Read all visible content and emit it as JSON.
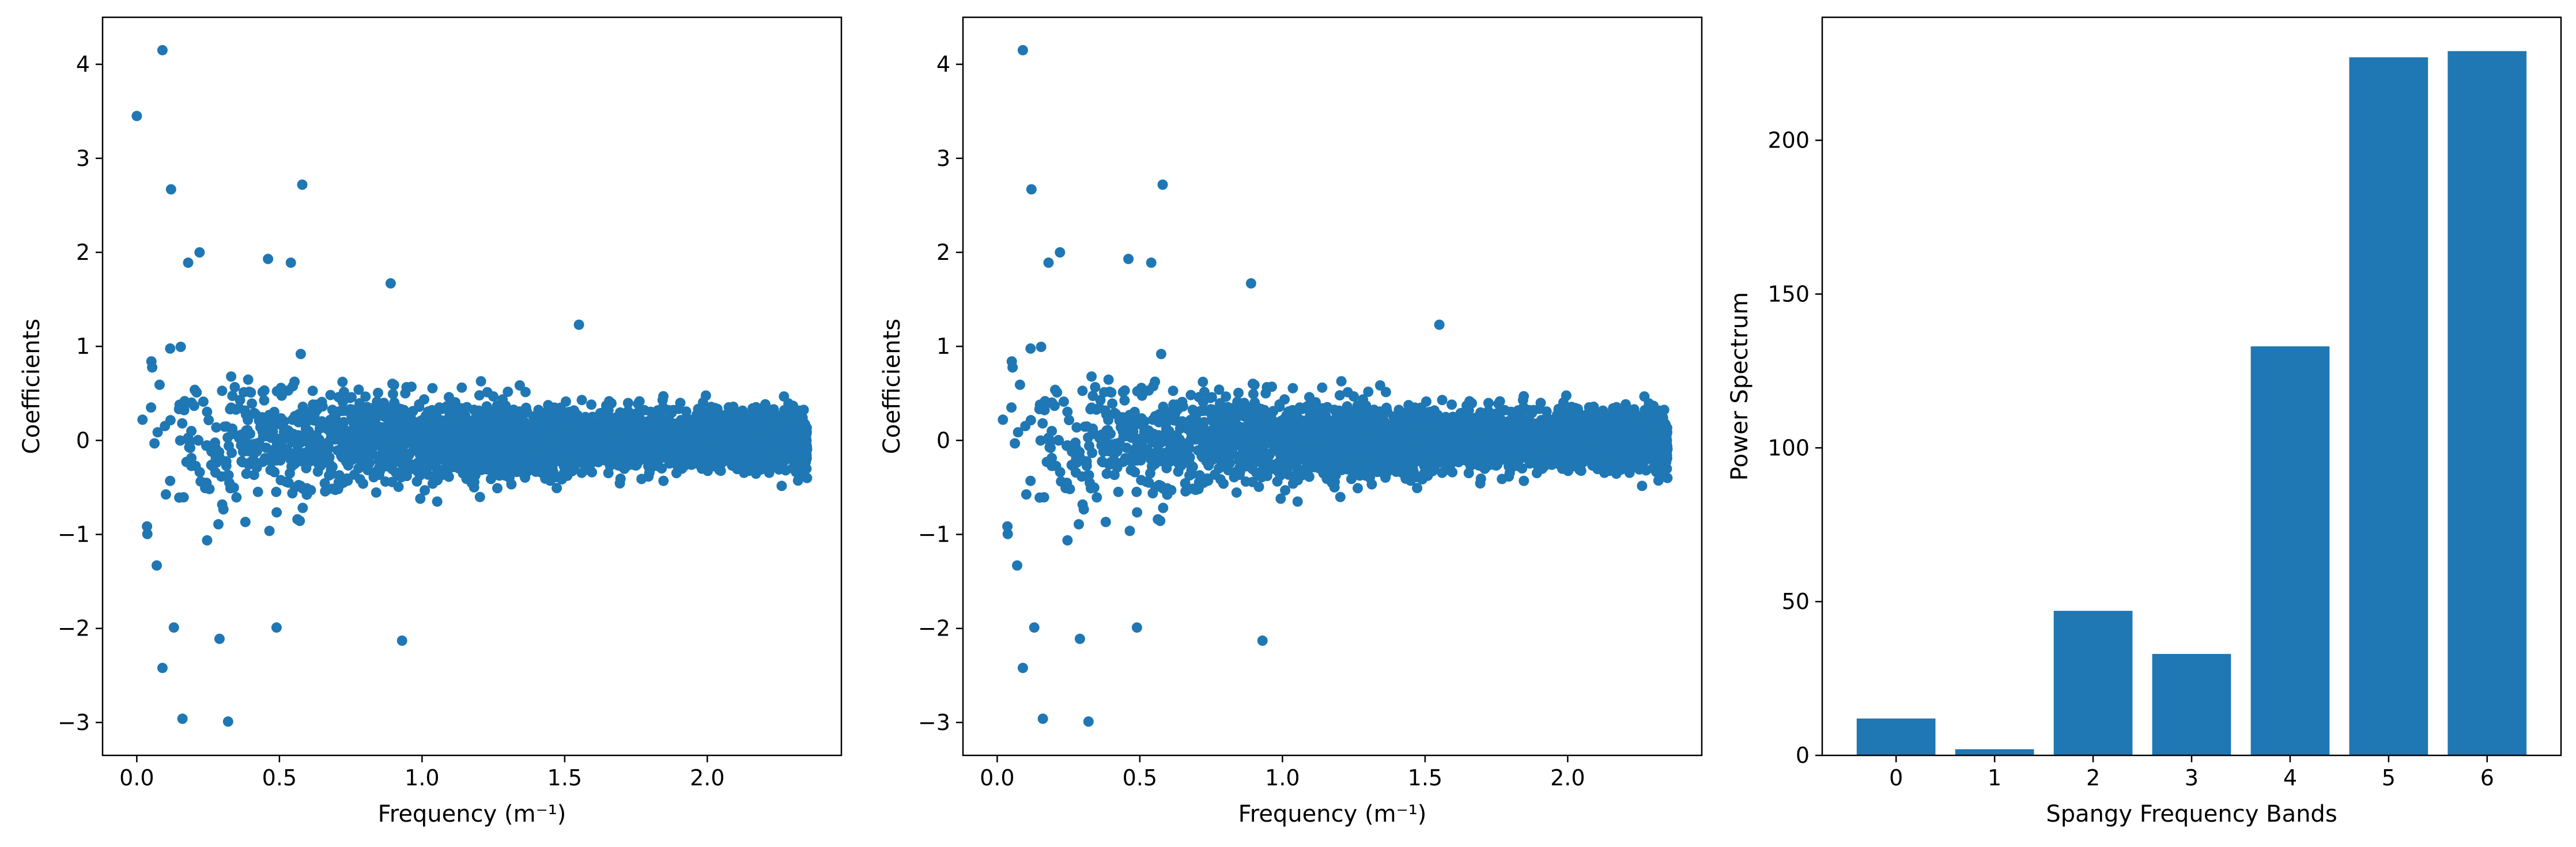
{
  "colors": {
    "series": "#1f77b4",
    "axes": "#000000",
    "background": "#ffffff"
  },
  "chart_data": [
    {
      "type": "scatter",
      "xlabel": "Frequency (m⁻¹)",
      "ylabel": "Coefficients",
      "xlim": [
        -0.12,
        2.47
      ],
      "ylim": [
        -3.35,
        4.5
      ],
      "xticks": [
        0.0,
        0.5,
        1.0,
        1.5,
        2.0
      ],
      "xtick_labels": [
        "0.0",
        "0.5",
        "1.0",
        "1.5",
        "2.0"
      ],
      "yticks": [
        -3,
        -2,
        -1,
        0,
        1,
        2,
        3,
        4
      ],
      "ytick_labels": [
        "−3",
        "−2",
        "−1",
        "0",
        "1",
        "2",
        "3",
        "4"
      ],
      "grid": false,
      "marker_color": "#1f77b4",
      "notable_points": [
        [
          0.0,
          3.45
        ],
        [
          0.09,
          4.15
        ],
        [
          0.12,
          2.67
        ],
        [
          0.58,
          2.72
        ],
        [
          0.32,
          -2.99
        ],
        [
          0.16,
          -2.96
        ],
        [
          0.09,
          -2.42
        ],
        [
          0.07,
          -1.33
        ],
        [
          0.93,
          -2.13
        ],
        [
          0.29,
          -2.11
        ],
        [
          0.49,
          -1.99
        ],
        [
          0.13,
          -1.99
        ],
        [
          0.22,
          2.0
        ],
        [
          0.18,
          1.89
        ],
        [
          0.46,
          1.93
        ],
        [
          0.54,
          1.89
        ],
        [
          0.89,
          1.67
        ],
        [
          1.55,
          1.23
        ],
        [
          0.02,
          0.22
        ],
        [
          0.05,
          0.35
        ]
      ],
      "envelope": [
        [
          0.1,
          1.6,
          1.6
        ],
        [
          0.3,
          1.3,
          1.3
        ],
        [
          0.5,
          1.0,
          1.0
        ],
        [
          0.7,
          0.85,
          0.85
        ],
        [
          0.9,
          0.75,
          0.8
        ],
        [
          1.2,
          0.65,
          0.65
        ],
        [
          1.5,
          0.55,
          0.6
        ],
        [
          1.8,
          0.5,
          0.5
        ],
        [
          2.1,
          0.45,
          0.45
        ],
        [
          2.35,
          0.45,
          0.45
        ]
      ],
      "x_max": 2.35,
      "n_points": 4000
    },
    {
      "type": "scatter",
      "xlabel": "Frequency (m⁻¹)",
      "ylabel": "Coefficients",
      "xlim": [
        -0.12,
        2.47
      ],
      "ylim": [
        -3.35,
        4.5
      ],
      "xticks": [
        0.0,
        0.5,
        1.0,
        1.5,
        2.0
      ],
      "xtick_labels": [
        "0.0",
        "0.5",
        "1.0",
        "1.5",
        "2.0"
      ],
      "yticks": [
        -3,
        -2,
        -1,
        0,
        1,
        2,
        3,
        4
      ],
      "ytick_labels": [
        "−3",
        "−2",
        "−1",
        "0",
        "1",
        "2",
        "3",
        "4"
      ],
      "grid": false,
      "marker_color": "#1f77b4",
      "notable_points": [
        [
          0.09,
          4.15
        ],
        [
          0.12,
          2.67
        ],
        [
          0.58,
          2.72
        ],
        [
          0.32,
          -2.99
        ],
        [
          0.16,
          -2.96
        ],
        [
          0.09,
          -2.42
        ],
        [
          0.07,
          -1.33
        ],
        [
          0.93,
          -2.13
        ],
        [
          0.29,
          -2.11
        ],
        [
          0.49,
          -1.99
        ],
        [
          0.13,
          -1.99
        ],
        [
          0.22,
          2.0
        ],
        [
          0.18,
          1.89
        ],
        [
          0.46,
          1.93
        ],
        [
          0.54,
          1.89
        ],
        [
          0.89,
          1.67
        ],
        [
          1.55,
          1.23
        ],
        [
          0.02,
          0.22
        ],
        [
          0.05,
          0.35
        ]
      ],
      "envelope": [
        [
          0.1,
          1.6,
          1.6
        ],
        [
          0.3,
          1.3,
          1.3
        ],
        [
          0.5,
          1.0,
          1.0
        ],
        [
          0.7,
          0.85,
          0.85
        ],
        [
          0.9,
          0.75,
          0.8
        ],
        [
          1.2,
          0.65,
          0.65
        ],
        [
          1.5,
          0.55,
          0.6
        ],
        [
          1.8,
          0.5,
          0.5
        ],
        [
          2.1,
          0.45,
          0.45
        ],
        [
          2.35,
          0.45,
          0.45
        ]
      ],
      "x_max": 2.35,
      "n_points": 4000
    },
    {
      "type": "bar",
      "xlabel": "Spangy Frequency Bands",
      "ylabel": "Power Spectrum",
      "categories": [
        "0",
        "1",
        "2",
        "3",
        "4",
        "5",
        "6"
      ],
      "values": [
        12,
        2,
        47,
        33,
        133,
        227,
        229
      ],
      "xlim": [
        -0.75,
        6.75
      ],
      "ylim": [
        0,
        240
      ],
      "yticks": [
        0,
        50,
        100,
        150,
        200
      ],
      "ytick_labels": [
        "0",
        "50",
        "100",
        "150",
        "200"
      ],
      "bar_color": "#1f77b4",
      "grid": false
    }
  ]
}
